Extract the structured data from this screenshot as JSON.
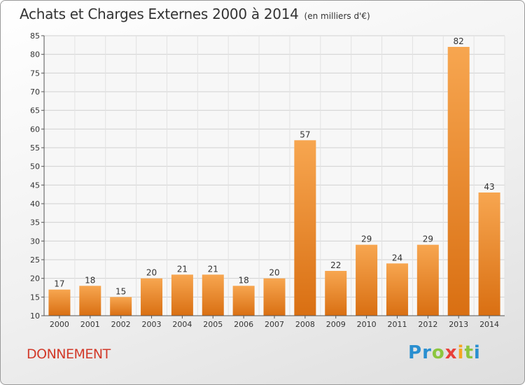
{
  "header": {
    "title": "Achats et Charges Externes 2000 à 2014",
    "unit": "(en milliers d'€)"
  },
  "footer": {
    "commune": "DONNEMENT",
    "logo_letters": [
      {
        "ch": "P",
        "color": "#2a8fd0"
      },
      {
        "ch": "r",
        "color": "#2a8fd0"
      },
      {
        "ch": "o",
        "color": "#8cc63f"
      },
      {
        "ch": "x",
        "color": "#e8403a"
      },
      {
        "ch": "i",
        "color": "#f5a623"
      },
      {
        "ch": "t",
        "color": "#8cc63f"
      },
      {
        "ch": "i",
        "color": "#2a8fd0"
      }
    ]
  },
  "chart_data": {
    "type": "bar",
    "categories": [
      "2000",
      "2001",
      "2002",
      "2003",
      "2004",
      "2005",
      "2006",
      "2007",
      "2008",
      "2009",
      "2010",
      "2011",
      "2012",
      "2013",
      "2014"
    ],
    "values": [
      17,
      18,
      15,
      20,
      21,
      21,
      18,
      20,
      57,
      22,
      29,
      24,
      29,
      82,
      43
    ],
    "ylim": [
      10,
      85
    ],
    "yticks": [
      10,
      15,
      20,
      25,
      30,
      35,
      40,
      45,
      50,
      55,
      60,
      65,
      70,
      75,
      80,
      85
    ],
    "grid": true,
    "bar_color": "#f08a2c"
  }
}
